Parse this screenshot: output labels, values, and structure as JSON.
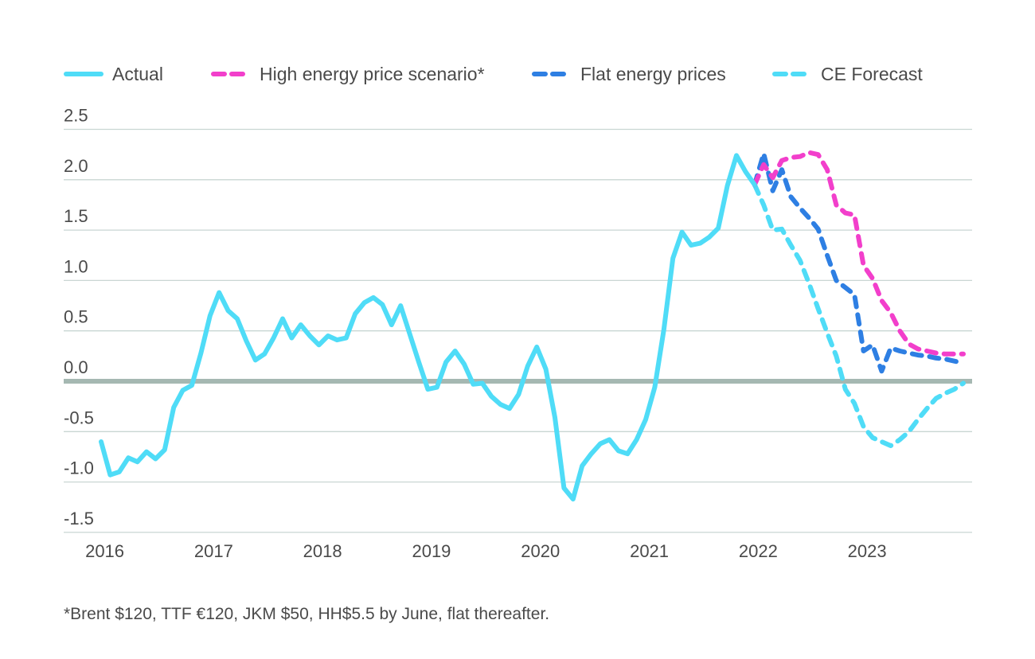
{
  "chart_data": {
    "type": "line",
    "title": "",
    "xlabel": "",
    "ylabel": "",
    "ylim": [
      -1.5,
      2.5
    ],
    "yticks": [
      "2.5",
      "2.0",
      "1.5",
      "1.0",
      "0.5",
      "0.0",
      "-0.5",
      "-1.0",
      "-1.5"
    ],
    "ytick_values": [
      2.5,
      2.0,
      1.5,
      1.0,
      0.5,
      0.0,
      -0.5,
      -1.0,
      -1.5
    ],
    "xticks": [
      "2016",
      "2017",
      "2018",
      "2019",
      "2020",
      "2021",
      "2022",
      "2023"
    ],
    "grid": true,
    "legend_position": "top",
    "zero_line_color": "#a5b8b2",
    "grid_color": "#c9d6d3",
    "series": [
      {
        "name": "Actual",
        "style": "solid",
        "color": "#4fdcf7",
        "x": [
          "2016-01",
          "2016-02",
          "2016-03",
          "2016-04",
          "2016-05",
          "2016-06",
          "2016-07",
          "2016-08",
          "2016-09",
          "2016-10",
          "2016-11",
          "2016-12",
          "2017-01",
          "2017-02",
          "2017-03",
          "2017-04",
          "2017-05",
          "2017-06",
          "2017-07",
          "2017-08",
          "2017-09",
          "2017-10",
          "2017-11",
          "2017-12",
          "2018-01",
          "2018-02",
          "2018-03",
          "2018-04",
          "2018-05",
          "2018-06",
          "2018-07",
          "2018-08",
          "2018-09",
          "2018-10",
          "2018-11",
          "2018-12",
          "2019-01",
          "2019-02",
          "2019-03",
          "2019-04",
          "2019-05",
          "2019-06",
          "2019-07",
          "2019-08",
          "2019-09",
          "2019-10",
          "2019-11",
          "2019-12",
          "2020-01",
          "2020-02",
          "2020-03",
          "2020-04",
          "2020-05",
          "2020-06",
          "2020-07",
          "2020-08",
          "2020-09",
          "2020-10",
          "2020-11",
          "2020-12",
          "2021-01",
          "2021-02",
          "2021-03",
          "2021-04",
          "2021-05",
          "2021-06",
          "2021-07",
          "2021-08",
          "2021-09",
          "2021-10",
          "2021-11",
          "2021-12",
          "2022-01"
        ],
        "values": [
          -0.6,
          -0.93,
          -0.9,
          -0.76,
          -0.8,
          -0.7,
          -0.77,
          -0.68,
          -0.26,
          -0.09,
          -0.04,
          0.28,
          0.65,
          0.88,
          0.7,
          0.62,
          0.4,
          0.21,
          0.27,
          0.43,
          0.62,
          0.43,
          0.56,
          0.45,
          0.36,
          0.45,
          0.41,
          0.43,
          0.67,
          0.78,
          0.83,
          0.76,
          0.56,
          0.75,
          0.47,
          0.19,
          -0.08,
          -0.06,
          0.19,
          0.3,
          0.17,
          -0.03,
          -0.02,
          -0.15,
          -0.23,
          -0.27,
          -0.13,
          0.15,
          0.34,
          0.12,
          -0.36,
          -1.06,
          -1.17,
          -0.84,
          -0.72,
          -0.62,
          -0.58,
          -0.69,
          -0.72,
          -0.58,
          -0.38,
          -0.06,
          0.51,
          1.22,
          1.48,
          1.35,
          1.37,
          1.43,
          1.52,
          1.94,
          2.24,
          2.08,
          1.95
        ]
      },
      {
        "name": "High energy price scenario*",
        "style": "dashed",
        "color": "#f23fcb",
        "x": [
          "2022-01",
          "2022-02",
          "2022-03",
          "2022-04",
          "2022-05",
          "2022-06",
          "2022-07",
          "2022-08",
          "2022-09",
          "2022-10",
          "2022-11",
          "2022-12",
          "2023-01",
          "2023-02",
          "2023-03",
          "2023-04",
          "2023-05",
          "2023-06",
          "2023-07",
          "2023-08",
          "2023-09",
          "2023-10",
          "2023-11",
          "2023-12"
        ],
        "values": [
          1.95,
          2.15,
          2.02,
          2.19,
          2.22,
          2.23,
          2.27,
          2.25,
          2.1,
          1.75,
          1.67,
          1.65,
          1.15,
          1.02,
          0.8,
          0.68,
          0.5,
          0.37,
          0.32,
          0.3,
          0.28,
          0.27,
          0.27,
          0.27
        ]
      },
      {
        "name": "Flat energy prices",
        "style": "dashed",
        "color": "#2e7fe3",
        "x": [
          "2022-01",
          "2022-02",
          "2022-03",
          "2022-04",
          "2022-05",
          "2022-06",
          "2022-07",
          "2022-08",
          "2022-09",
          "2022-10",
          "2022-11",
          "2022-12",
          "2023-01",
          "2023-02",
          "2023-03",
          "2023-04",
          "2023-05",
          "2023-06",
          "2023-07",
          "2023-08",
          "2023-09",
          "2023-10",
          "2023-11",
          "2023-12"
        ],
        "values": [
          1.95,
          2.26,
          1.89,
          2.1,
          1.83,
          1.72,
          1.62,
          1.51,
          1.25,
          1.0,
          0.93,
          0.86,
          0.3,
          0.36,
          0.1,
          0.33,
          0.3,
          0.28,
          0.26,
          0.25,
          0.23,
          0.22,
          0.2,
          0.18
        ]
      },
      {
        "name": "CE Forecast",
        "style": "dashed",
        "color": "#4fdcf7",
        "x": [
          "2022-01",
          "2022-02",
          "2022-03",
          "2022-04",
          "2022-05",
          "2022-06",
          "2022-07",
          "2022-08",
          "2022-09",
          "2022-10",
          "2022-11",
          "2022-12",
          "2023-01",
          "2023-02",
          "2023-03",
          "2023-04",
          "2023-05",
          "2023-06",
          "2023-07",
          "2023-08",
          "2023-09",
          "2023-10",
          "2023-11",
          "2023-12"
        ],
        "values": [
          1.95,
          1.75,
          1.5,
          1.51,
          1.35,
          1.2,
          0.97,
          0.72,
          0.48,
          0.25,
          -0.08,
          -0.22,
          -0.45,
          -0.56,
          -0.6,
          -0.64,
          -0.58,
          -0.5,
          -0.38,
          -0.27,
          -0.17,
          -0.12,
          -0.08,
          -0.02
        ]
      }
    ],
    "footnote": "*Brent $120, TTF €120, JKM $50, HH$5.5 by June, flat thereafter."
  }
}
